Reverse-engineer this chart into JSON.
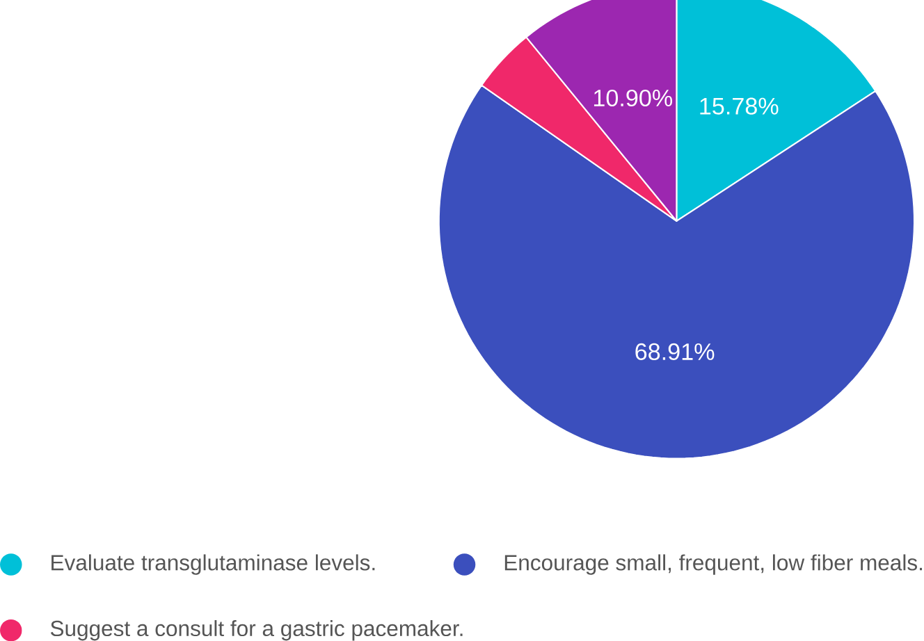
{
  "chart_data": {
    "type": "pie",
    "categories": [
      "Evaluate transglutaminase levels.",
      "Encourage small, frequent, low fiber meals.",
      "Suggest a consult for a gastric pacemaker.",
      null
    ],
    "values": [
      15.78,
      68.91,
      4.41,
      10.9
    ],
    "value_labels": [
      "15.78%",
      "68.91%",
      null,
      "10.90%"
    ],
    "colors": [
      "#00c0d8",
      "#3b4fbd",
      "#f0286a",
      "#9c27b0"
    ],
    "legend": "bottom"
  }
}
